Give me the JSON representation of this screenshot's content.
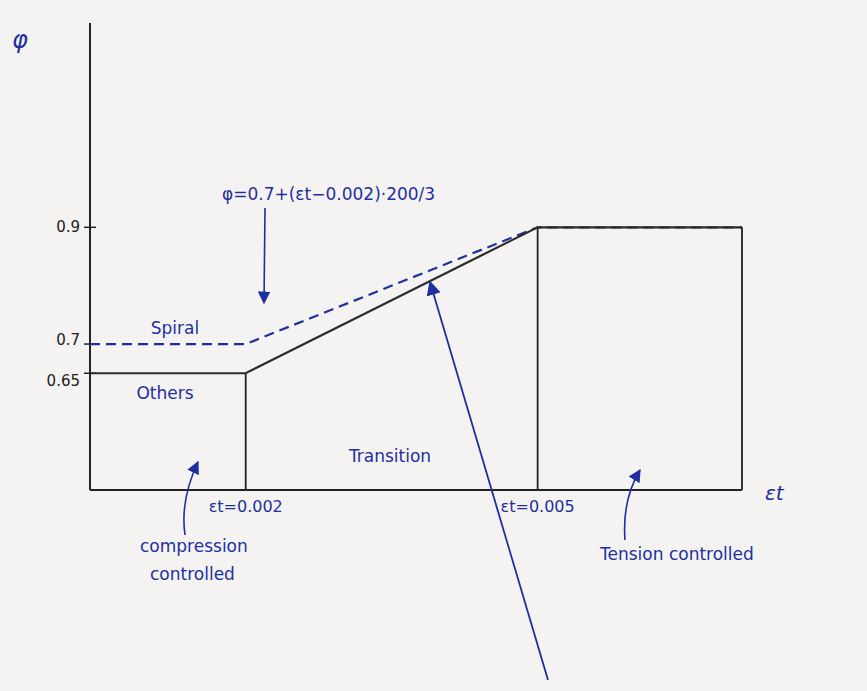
{
  "chart_data": {
    "type": "line",
    "x_label": "εt",
    "y_label": "φ",
    "x": [
      0.0004,
      0.002,
      0.005,
      0.0071
    ],
    "series": [
      {
        "name": "Spiral",
        "color": "#1f2fa0",
        "line_style": "dashed",
        "values": [
          0.7,
          0.7,
          0.9,
          0.9
        ]
      },
      {
        "name": "Others",
        "color": "#2b2b2b",
        "line_style": "solid",
        "values": [
          0.65,
          0.65,
          0.9,
          0.9
        ]
      }
    ],
    "xlim": [
      0.0004,
      0.0071
    ],
    "ylim": [
      0.45,
      1.25
    ],
    "xticks": [
      {
        "value": 0.002,
        "label": "εt=0.002"
      },
      {
        "value": 0.005,
        "label": "εt=0.005"
      }
    ],
    "yticks": [
      0.65,
      0.7,
      0.9
    ],
    "annotations": [
      "φ=0.7+(εt−0.002)·200/3",
      "compression controlled",
      "Transition",
      "Tension controlled"
    ]
  }
}
